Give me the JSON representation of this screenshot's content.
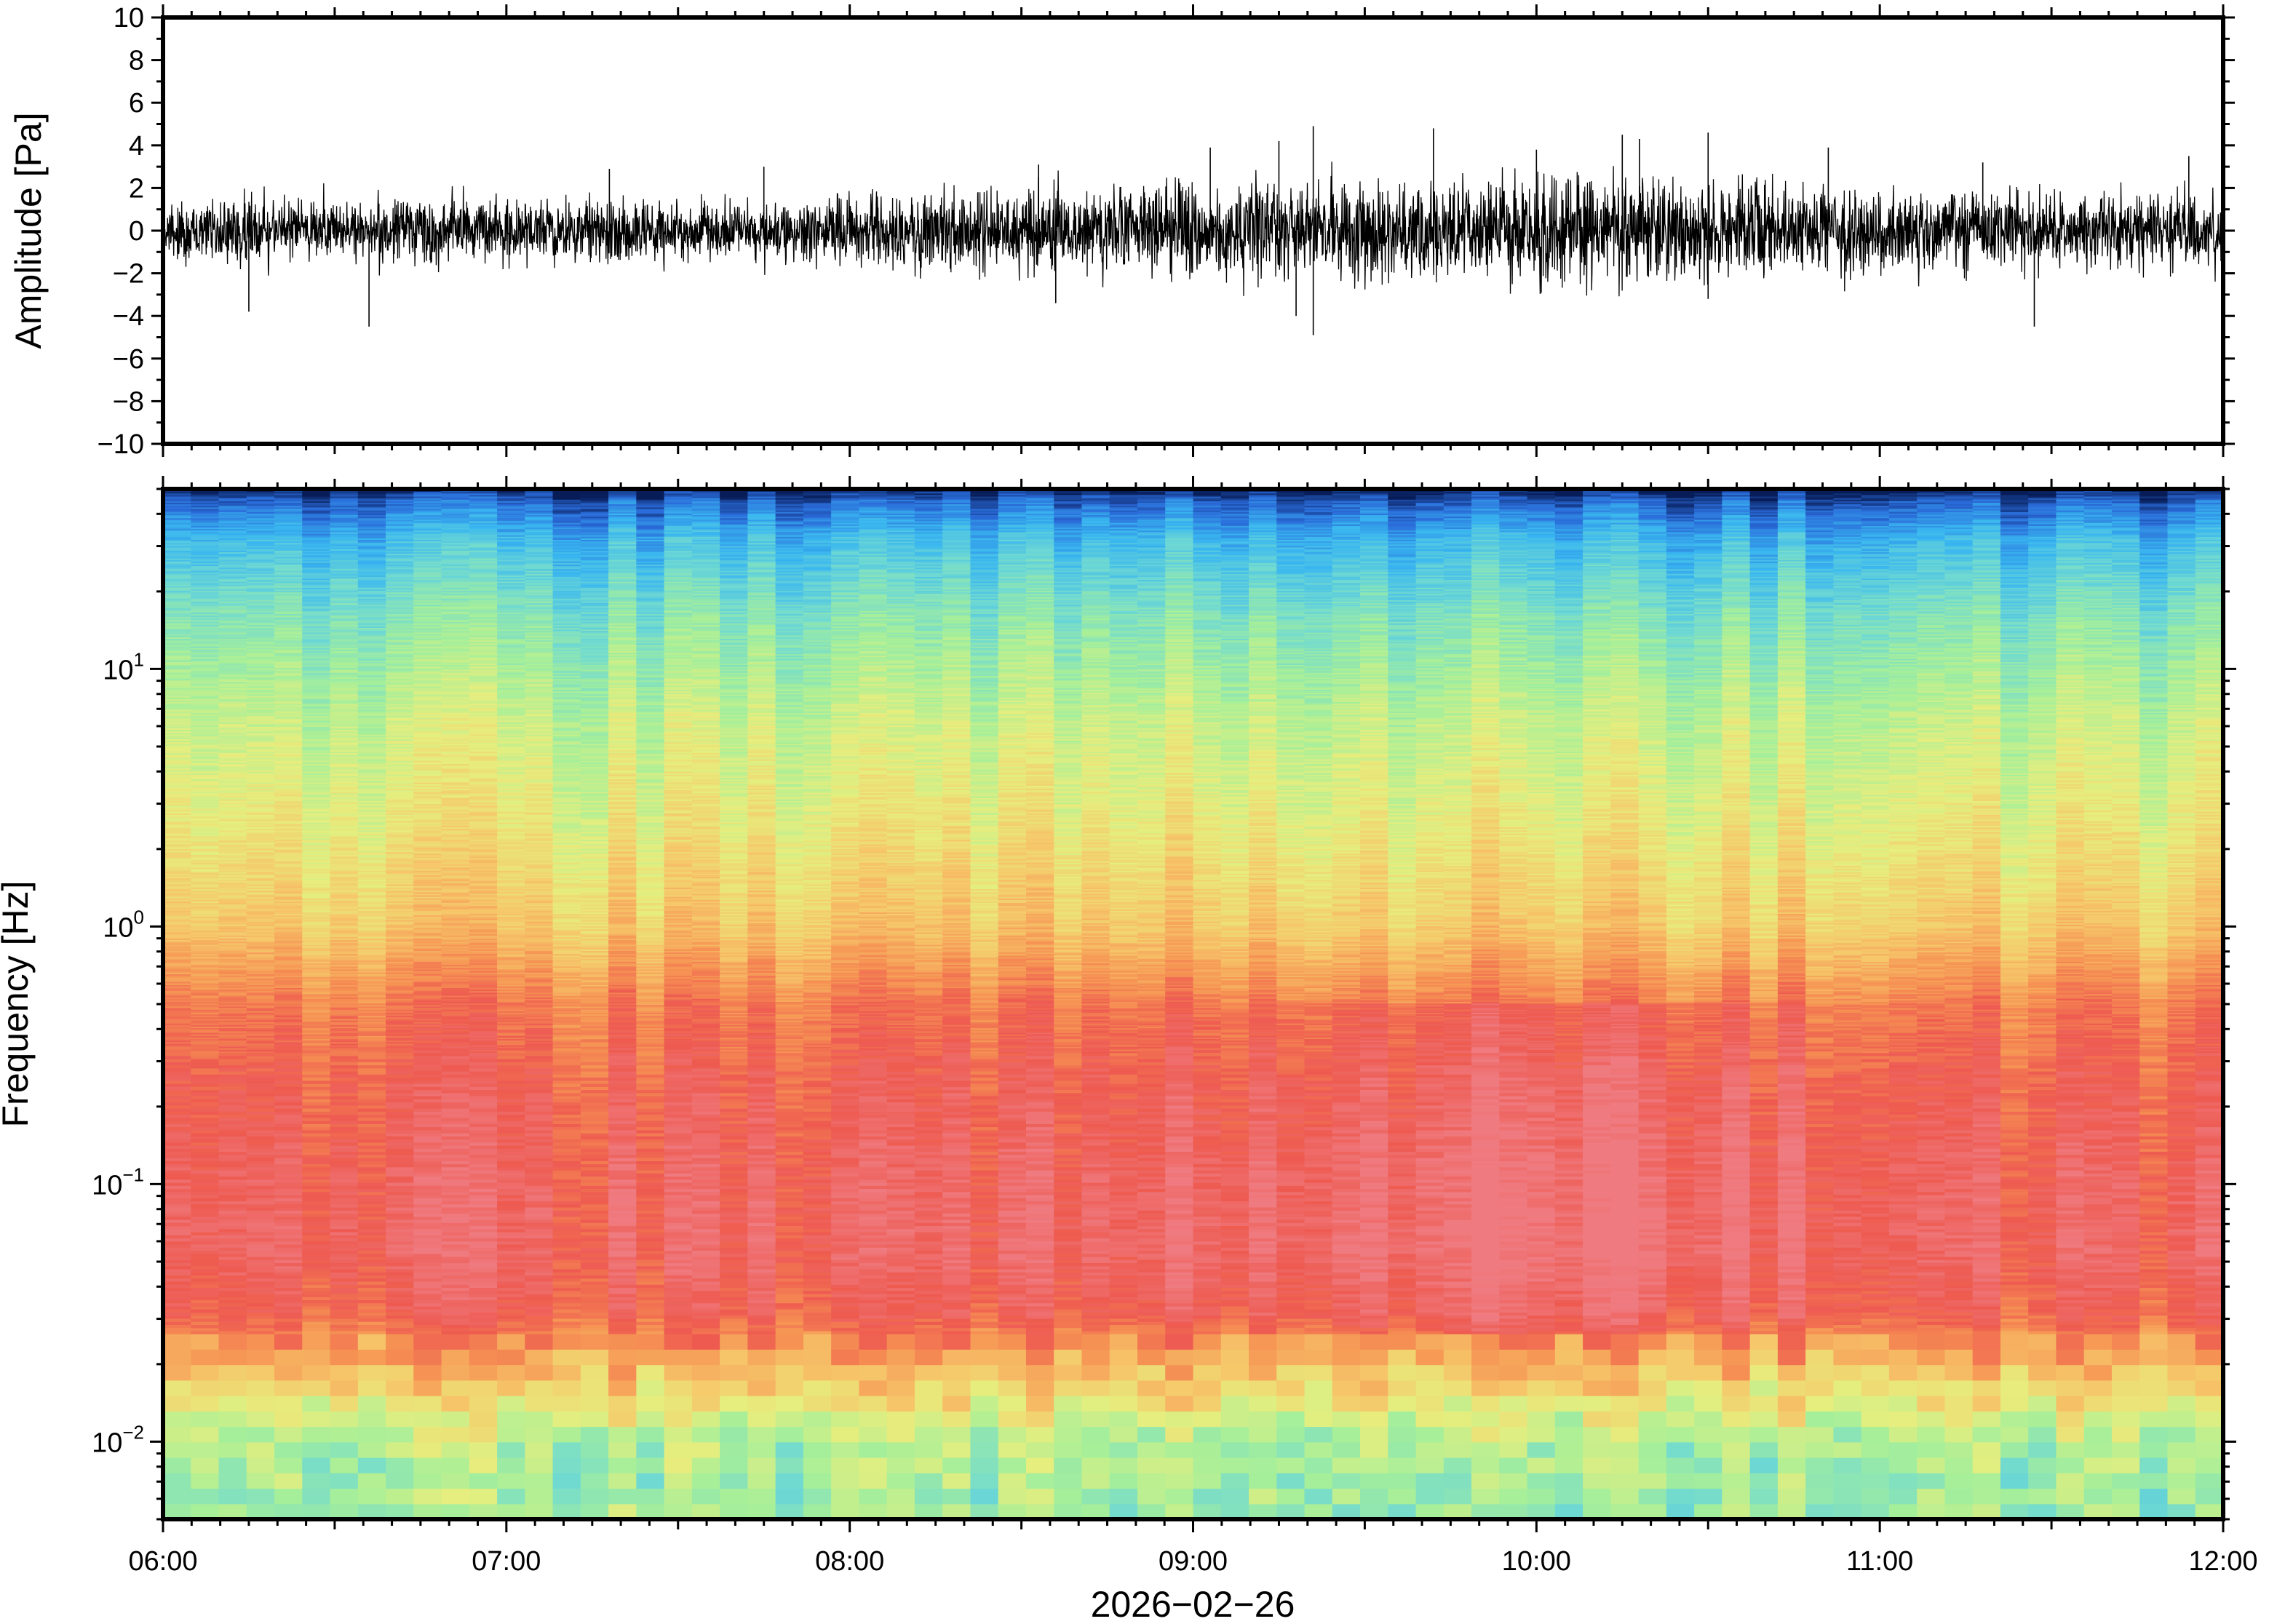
{
  "chart_data": [
    {
      "type": "line",
      "ylabel": "Amplitude [Pa]",
      "ylim": [
        -10,
        10
      ],
      "yticks": [
        "10",
        "8",
        "6",
        "4",
        "2",
        "0",
        "−2",
        "−4",
        "−6",
        "−8",
        "−10"
      ],
      "xlim": [
        "06:00",
        "12:00"
      ],
      "series": [
        {
          "color": "#000000",
          "envelope_t_hours": [
            6.0,
            6.25,
            6.5,
            6.75,
            7.0,
            7.25,
            7.5,
            7.75,
            8.0,
            8.25,
            8.5,
            8.75,
            9.0,
            9.25,
            9.5,
            9.75,
            10.0,
            10.25,
            10.5,
            10.75,
            11.0,
            11.25,
            11.5,
            11.75,
            12.0
          ],
          "envelope_pa": [
            1.2,
            1.3,
            1.3,
            1.4,
            1.3,
            1.4,
            1.3,
            1.2,
            1.3,
            1.5,
            1.6,
            1.8,
            1.9,
            2.0,
            2.2,
            2.0,
            2.1,
            2.3,
            2.0,
            1.8,
            1.7,
            1.6,
            1.5,
            1.6,
            1.5
          ],
          "peaks": [
            [
              6.25,
              -3.8
            ],
            [
              6.6,
              -4.5
            ],
            [
              7.3,
              2.9
            ],
            [
              7.75,
              3.0
            ],
            [
              8.55,
              3.1
            ],
            [
              8.6,
              -3.4
            ],
            [
              9.05,
              3.9
            ],
            [
              9.25,
              4.2
            ],
            [
              9.3,
              -4.0
            ],
            [
              9.35,
              4.9
            ],
            [
              9.35,
              -4.9
            ],
            [
              9.7,
              4.8
            ],
            [
              10.0,
              3.8
            ],
            [
              10.25,
              4.5
            ],
            [
              10.3,
              4.3
            ],
            [
              10.5,
              4.6
            ],
            [
              10.5,
              -3.2
            ],
            [
              10.85,
              3.9
            ],
            [
              11.3,
              3.2
            ],
            [
              11.45,
              -4.5
            ],
            [
              11.9,
              3.5
            ]
          ]
        }
      ]
    },
    {
      "type": "heatmap",
      "ylabel": "Frequency [Hz]",
      "xlabel": "2026−02−26",
      "yscale": "log",
      "ylim": [
        0.005,
        50
      ],
      "yticks": [
        {
          "base": "10",
          "exp": "1",
          "value": 10
        },
        {
          "base": "10",
          "exp": "0",
          "value": 1
        },
        {
          "base": "10",
          "exp": "−1",
          "value": 0.1
        },
        {
          "base": "10",
          "exp": "−2",
          "value": 0.01
        }
      ],
      "xticks": [
        "06:00",
        "07:00",
        "08:00",
        "09:00",
        "10:00",
        "11:00",
        "12:00"
      ],
      "xlim": [
        "06:00",
        "12:00"
      ],
      "colormap": [
        "#081d58",
        "#2a6bd9",
        "#39b6f0",
        "#6fd9d2",
        "#a6ef9a",
        "#e6ee7e",
        "#f6c76a",
        "#f69454",
        "#ee5a50",
        "#ef7a7f"
      ],
      "profile_log10_freq": [
        -2.3,
        -2.0,
        -1.75,
        -1.5,
        -1.25,
        -1.0,
        -0.6,
        -0.3,
        0.0,
        0.4,
        0.8,
        1.2,
        1.5,
        1.65,
        1.7
      ],
      "profile_level": [
        0.42,
        0.46,
        0.66,
        0.88,
        0.93,
        0.92,
        0.88,
        0.82,
        0.66,
        0.57,
        0.5,
        0.38,
        0.24,
        0.1,
        0.0
      ]
    }
  ]
}
